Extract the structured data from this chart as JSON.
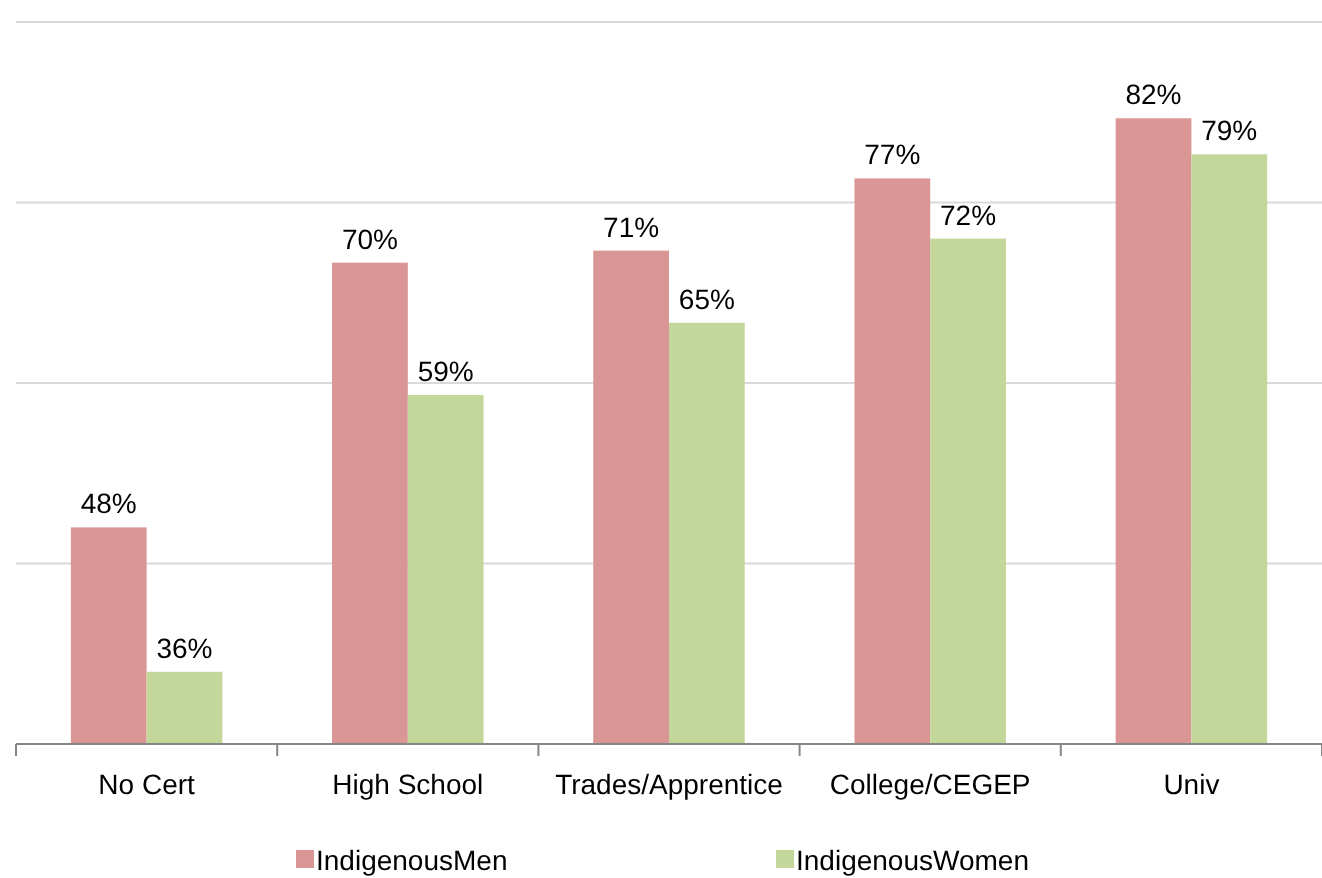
{
  "chart_data": {
    "type": "bar",
    "categories": [
      "No Cert",
      "High School",
      "Trades/Apprentice",
      "College/CEGEP",
      "Univ"
    ],
    "series": [
      {
        "name": "IndigenousMen",
        "color": "#da9694",
        "values": [
          48,
          70,
          71,
          77,
          82
        ],
        "value_labels": [
          "48%",
          "70%",
          "71%",
          "77%",
          "82%"
        ]
      },
      {
        "name": "IndigenousWomen",
        "color": "#c4d79b",
        "values": [
          36,
          59,
          65,
          72,
          79
        ],
        "value_labels": [
          "36%",
          "59%",
          "65%",
          "72%",
          "79%"
        ]
      }
    ],
    "ylim": [
      30,
      90
    ],
    "tick_labels": "x",
    "grid": "y",
    "legend": "bottom"
  }
}
